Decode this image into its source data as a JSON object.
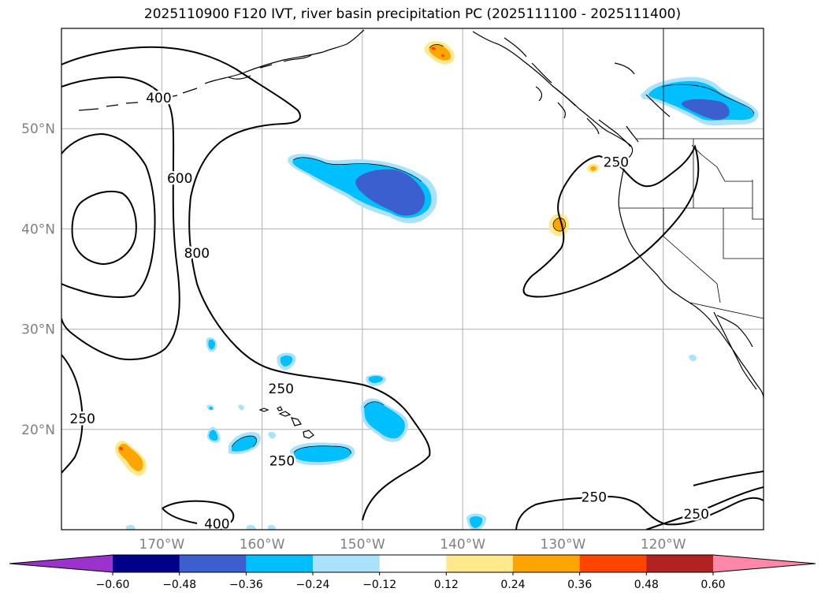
{
  "title": "2025110900 F120 IVT, river basin precipitation PC (2025111100 - 2025111400)",
  "chart_data": {
    "type": "map-contour",
    "lon_range": [
      -180,
      -110
    ],
    "lat_range": [
      10,
      60
    ],
    "lat_ticks": [
      {
        "value": 50,
        "label": "50°N"
      },
      {
        "value": 40,
        "label": "40°N"
      },
      {
        "value": 30,
        "label": "30°N"
      },
      {
        "value": 20,
        "label": "20°N"
      }
    ],
    "lon_ticks": [
      {
        "value": -170,
        "label": "170°W"
      },
      {
        "value": -160,
        "label": "160°W"
      },
      {
        "value": -150,
        "label": "150°W"
      },
      {
        "value": -140,
        "label": "140°W"
      },
      {
        "value": -130,
        "label": "130°W"
      },
      {
        "value": -120,
        "label": "120°W"
      }
    ],
    "ivt_contour_levels": [
      250,
      400,
      600,
      800
    ],
    "contour_labels": [
      {
        "text": "400",
        "lon": -170.3,
        "lat": 53.0
      },
      {
        "text": "600",
        "lon": -168.2,
        "lat": 45.0
      },
      {
        "text": "800",
        "lon": -166.5,
        "lat": 37.5
      },
      {
        "text": "250",
        "lon": -158.1,
        "lat": 24.0
      },
      {
        "text": "250",
        "lon": -177.9,
        "lat": 21.0
      },
      {
        "text": "250",
        "lon": -158.0,
        "lat": 16.8
      },
      {
        "text": "400",
        "lon": -164.5,
        "lat": 10.5
      },
      {
        "text": "250",
        "lon": -124.7,
        "lat": 46.6
      },
      {
        "text": "250",
        "lon": -126.9,
        "lat": 13.2
      },
      {
        "text": "250",
        "lon": -116.7,
        "lat": 11.5
      }
    ],
    "colorbar": {
      "levels": [
        -0.6,
        -0.48,
        -0.36,
        -0.24,
        -0.12,
        0.12,
        0.24,
        0.36,
        0.48,
        0.6
      ],
      "tick_labels": [
        "−0.60",
        "−0.48",
        "−0.36",
        "−0.24",
        "−0.12",
        "0.12",
        "0.24",
        "0.36",
        "0.48",
        "0.60"
      ],
      "colors": [
        "#9933cc",
        "#00008b",
        "#3c5fcf",
        "#00bfff",
        "#abe2fb",
        "#ffffff",
        "#ffe98f",
        "#ffa500",
        "#ff4500",
        "#b22222",
        "#ff88aa"
      ]
    }
  }
}
